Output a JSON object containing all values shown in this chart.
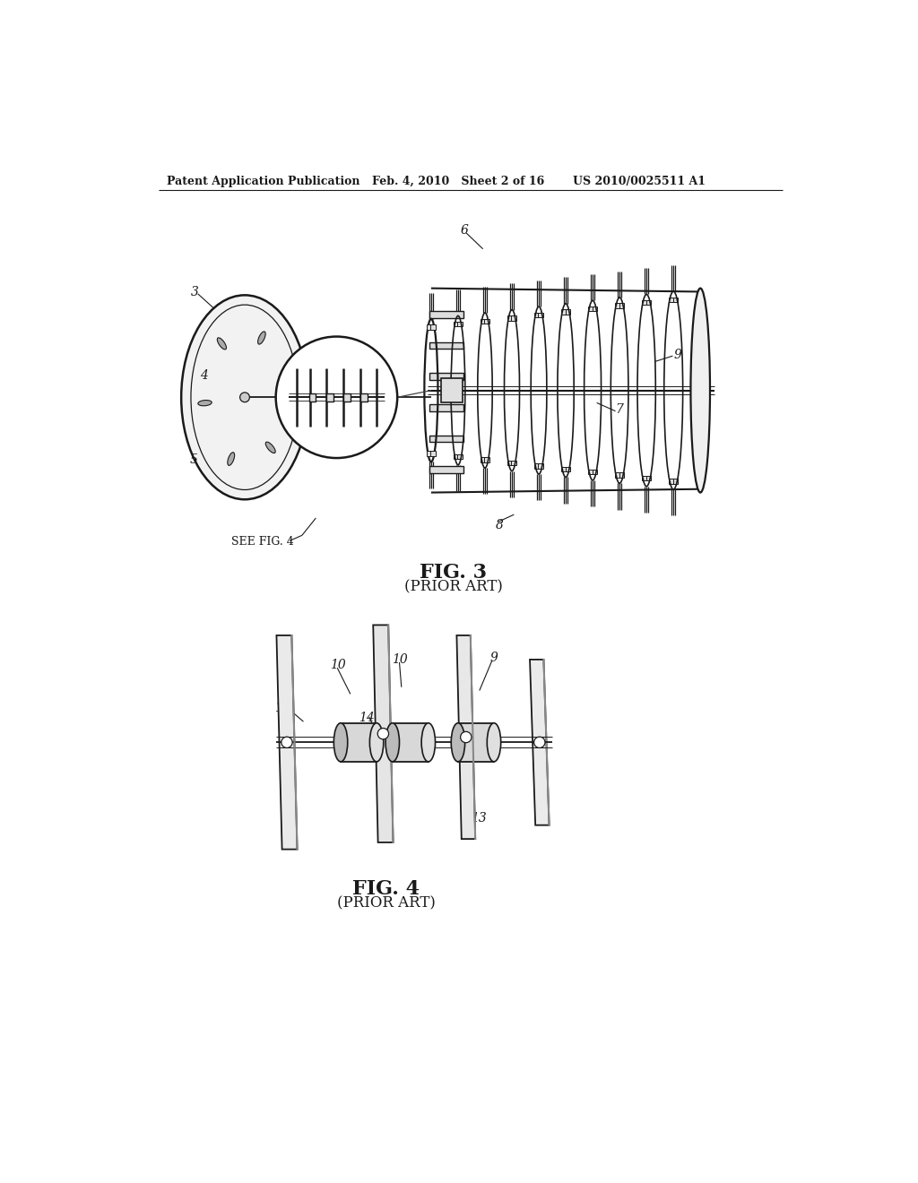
{
  "background_color": "#ffffff",
  "header_left": "Patent Application Publication",
  "header_mid": "Feb. 4, 2010   Sheet 2 of 16",
  "header_right": "US 2010/0025511 A1",
  "fig3_title": "FIG. 3",
  "fig3_subtitle": "(PRIOR ART)",
  "fig4_title": "FIG. 4",
  "fig4_subtitle": "(PRIOR ART)",
  "see_fig4_text": "SEE FIG. 4",
  "line_color": "#1a1a1a",
  "gray_light": "#e8e8e8",
  "gray_mid": "#cccccc",
  "gray_dark": "#999999"
}
